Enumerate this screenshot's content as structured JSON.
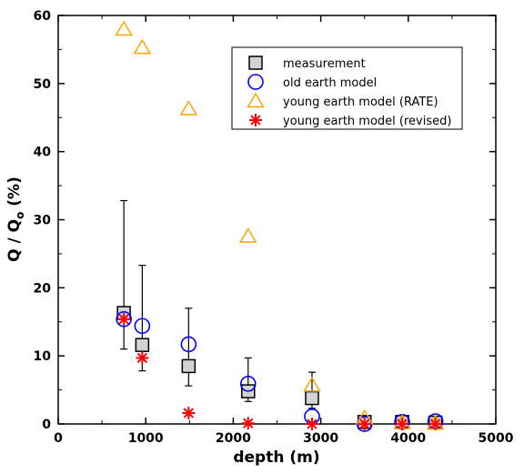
{
  "chart_data": {
    "type": "scatter",
    "xlabel": "depth  (m)",
    "ylabel_main": "Q / Q",
    "ylabel_sub": "o",
    "ylabel_tail": " (%)",
    "xlim": [
      0,
      5000
    ],
    "ylim": [
      0,
      60
    ],
    "x_ticks": [
      0,
      1000,
      2000,
      3000,
      4000,
      5000
    ],
    "x_tick_labels": [
      "0",
      "1000",
      "2000",
      "3000",
      "4000",
      "5000"
    ],
    "y_ticks": [
      0,
      10,
      20,
      30,
      40,
      50,
      60
    ],
    "y_tick_labels": [
      "0",
      "10",
      "20",
      "30",
      "40",
      "50",
      "60"
    ],
    "grid": false,
    "legend_position": "top-right",
    "series": [
      {
        "name": "measurement",
        "marker": "square",
        "color": "#000000",
        "fill": "#d3d3d3",
        "points": [
          {
            "x": 750,
            "y": 16.3,
            "err_low": 11.0,
            "err_high": 32.8
          },
          {
            "x": 960,
            "y": 11.6,
            "err_low": 7.8,
            "err_high": 23.3
          },
          {
            "x": 1490,
            "y": 8.5,
            "err_low": 5.6,
            "err_high": 17.0
          },
          {
            "x": 2170,
            "y": 4.8,
            "err_low": 3.3,
            "err_high": 9.7
          },
          {
            "x": 2900,
            "y": 3.8,
            "err_low": 2.3,
            "err_high": 7.6
          },
          {
            "x": 3500,
            "y": 0.3,
            "err_low": 0.1,
            "err_high": 0.6
          },
          {
            "x": 3930,
            "y": 0.3,
            "err_low": 0.1,
            "err_high": 0.6
          },
          {
            "x": 4310,
            "y": 0.2,
            "err_low": 0.0,
            "err_high": 0.5
          }
        ]
      },
      {
        "name": "old earth model",
        "marker": "circle",
        "color": "#0000ff",
        "points": [
          {
            "x": 750,
            "y": 15.4
          },
          {
            "x": 960,
            "y": 14.4
          },
          {
            "x": 1490,
            "y": 11.7
          },
          {
            "x": 2170,
            "y": 5.9
          },
          {
            "x": 2900,
            "y": 1.1
          },
          {
            "x": 3500,
            "y": 0.0
          },
          {
            "x": 3930,
            "y": 0.3
          },
          {
            "x": 4310,
            "y": 0.4
          }
        ]
      },
      {
        "name": "young earth model (RATE)",
        "marker": "triangle",
        "color": "#ffa500",
        "points": [
          {
            "x": 750,
            "y": 58.0
          },
          {
            "x": 960,
            "y": 55.3
          },
          {
            "x": 1490,
            "y": 46.3
          },
          {
            "x": 2170,
            "y": 27.6
          },
          {
            "x": 2900,
            "y": 5.7
          },
          {
            "x": 3500,
            "y": 0.9
          },
          {
            "x": 3930,
            "y": 0.2
          },
          {
            "x": 4310,
            "y": 0.1
          }
        ]
      },
      {
        "name": "young earth model (revised)",
        "marker": "asterisk",
        "color": "#ff0000",
        "points": [
          {
            "x": 750,
            "y": 15.4
          },
          {
            "x": 960,
            "y": 9.7
          },
          {
            "x": 1490,
            "y": 1.6
          },
          {
            "x": 2170,
            "y": 0.1
          },
          {
            "x": 2900,
            "y": 0.0
          },
          {
            "x": 3500,
            "y": 0.0
          },
          {
            "x": 3930,
            "y": 0.0
          },
          {
            "x": 4310,
            "y": 0.0
          }
        ]
      }
    ]
  }
}
